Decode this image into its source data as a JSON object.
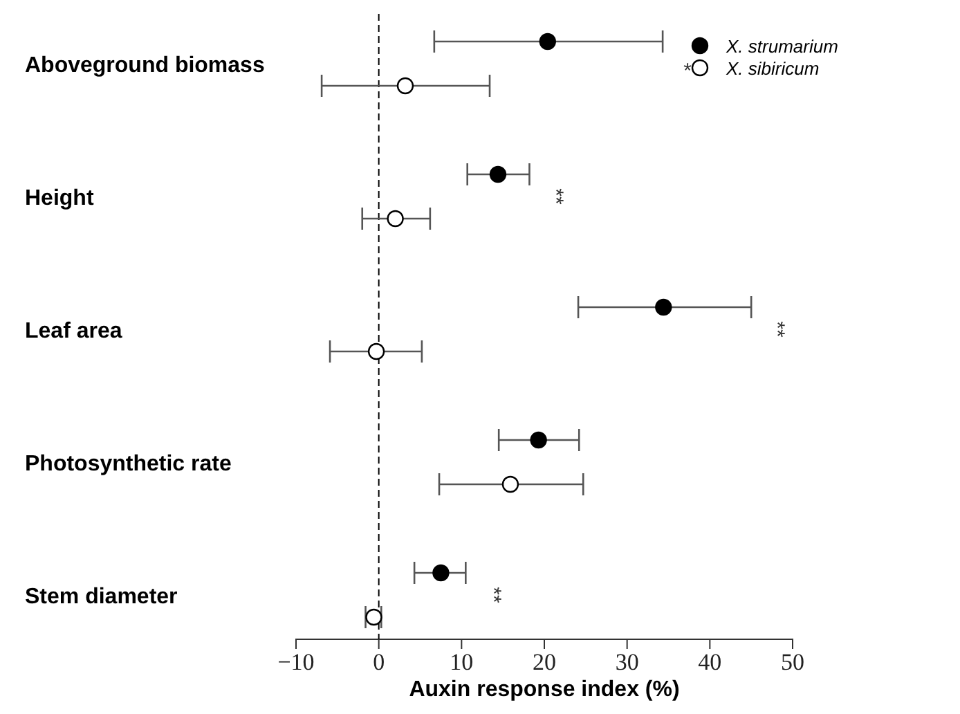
{
  "chart_data": {
    "type": "scatter",
    "orientation": "horizontal",
    "xlabel": "Auxin response index (%)",
    "categories": [
      "Aboveground biomass",
      "Height",
      "Leaf area",
      "Photosynthetic rate",
      "Stem diameter"
    ],
    "series": [
      {
        "name": "X. strumarium",
        "color": "#000000",
        "values": [
          20.4,
          14.4,
          34.4,
          19.3,
          7.5
        ],
        "errors": [
          [
            6.7,
            34.3
          ],
          [
            10.7,
            18.2
          ],
          [
            24.1,
            45.0
          ],
          [
            14.5,
            24.2
          ],
          [
            4.3,
            10.5
          ]
        ]
      },
      {
        "name": "X. sibiricum",
        "color": "#ffffff",
        "values": [
          3.2,
          2.0,
          -0.3,
          15.9,
          -0.6
        ],
        "errors": [
          [
            -6.9,
            13.4
          ],
          [
            -2.0,
            6.2
          ],
          [
            -5.9,
            5.2
          ],
          [
            7.3,
            24.7
          ],
          [
            -1.6,
            0.3
          ]
        ]
      }
    ],
    "xlim": [
      -10,
      50
    ],
    "xticks": [
      {
        "value": -10,
        "label": "−10"
      },
      0,
      10,
      20,
      30,
      40,
      50
    ],
    "ref_lines": [
      {
        "axis": "x",
        "value": 0,
        "line_style": "dashed",
        "color": "#000000"
      }
    ],
    "annotations": [
      "*",
      "**",
      "**",
      "**"
    ],
    "marker": "circle",
    "legend": "top right",
    "grid": false
  }
}
